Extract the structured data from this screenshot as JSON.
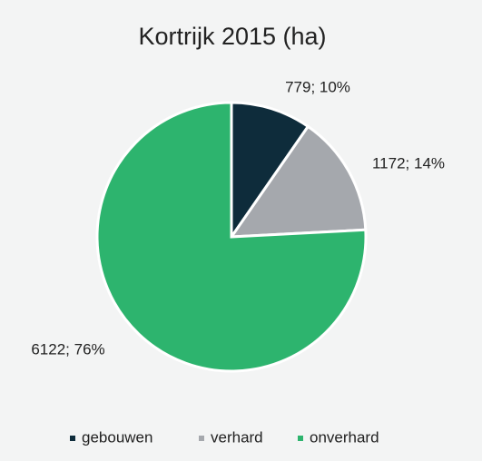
{
  "chart_data": {
    "type": "pie",
    "title": "Kortrijk 2015 (ha)",
    "categories": [
      "gebouwen",
      "verhard",
      "onverhard"
    ],
    "values": [
      779,
      1172,
      6122
    ],
    "value_labels": [
      "779; 10%",
      "1172; 14%",
      "6122; 76%"
    ],
    "colors": [
      "#0e2c3b",
      "#a5a8ad",
      "#2db46e"
    ],
    "legend": "bottom"
  }
}
